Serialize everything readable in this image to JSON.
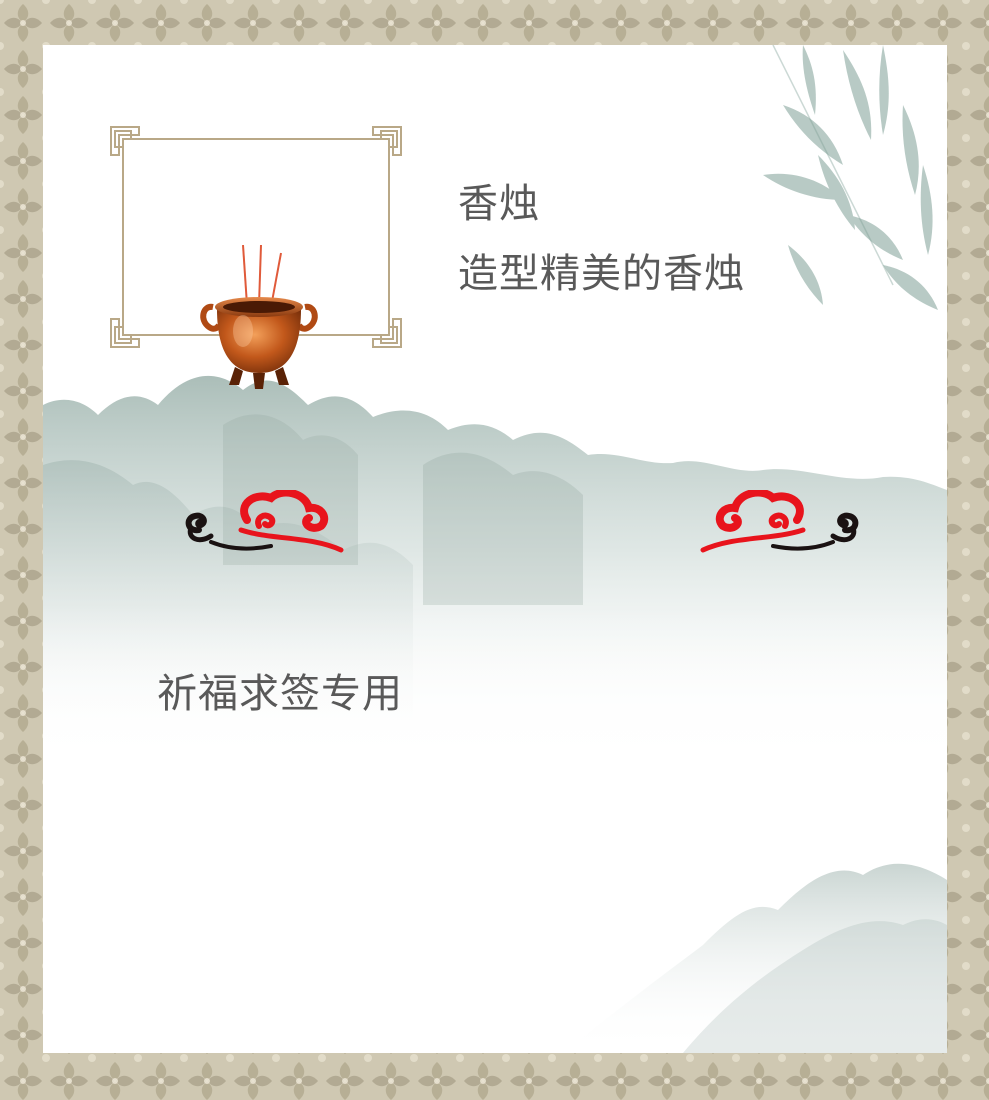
{
  "product": {
    "title": "香烛",
    "description": "造型精美的香烛",
    "icon": "incense-burner-icon"
  },
  "section": {
    "usage": "祈福求签专用"
  },
  "decorations": {
    "left_cloud": "auspicious-cloud-icon",
    "right_cloud": "auspicious-cloud-icon"
  },
  "colors": {
    "text": "#595959",
    "frame_gold": "#b9a887",
    "cloud_red": "#e8141c",
    "cloud_black": "#1a1212",
    "border_pattern": "#c9c2ab",
    "mountain_ink": "#9fb5ae"
  }
}
